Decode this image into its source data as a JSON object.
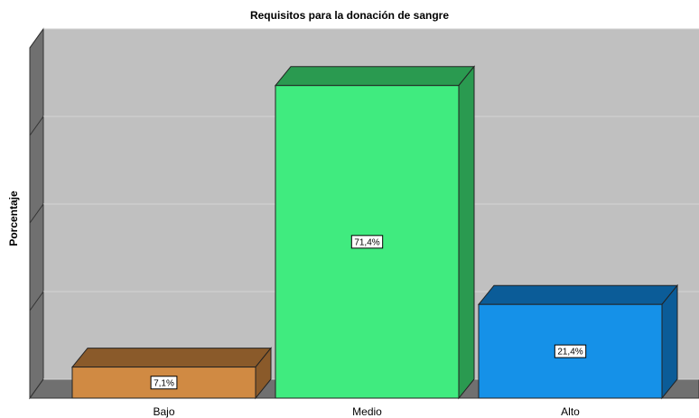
{
  "chart_data": {
    "type": "bar",
    "title": "Requisitos para la donación de sangre",
    "ylabel": "Porcentaje",
    "categories": [
      "Bajo",
      "Medio",
      "Alto"
    ],
    "values": [
      7.1,
      71.4,
      21.4
    ],
    "value_labels": [
      "7,1%",
      "71,4%",
      "21,4%"
    ],
    "colors": [
      "#d08a43",
      "#40eb7f",
      "#1591e8"
    ],
    "shade_colors": [
      "#8a5a2a",
      "#2a9a50",
      "#0b5c98"
    ],
    "ylim": [
      0,
      80
    ],
    "yticks": [
      0,
      20,
      40,
      60,
      80
    ],
    "grid": true
  }
}
